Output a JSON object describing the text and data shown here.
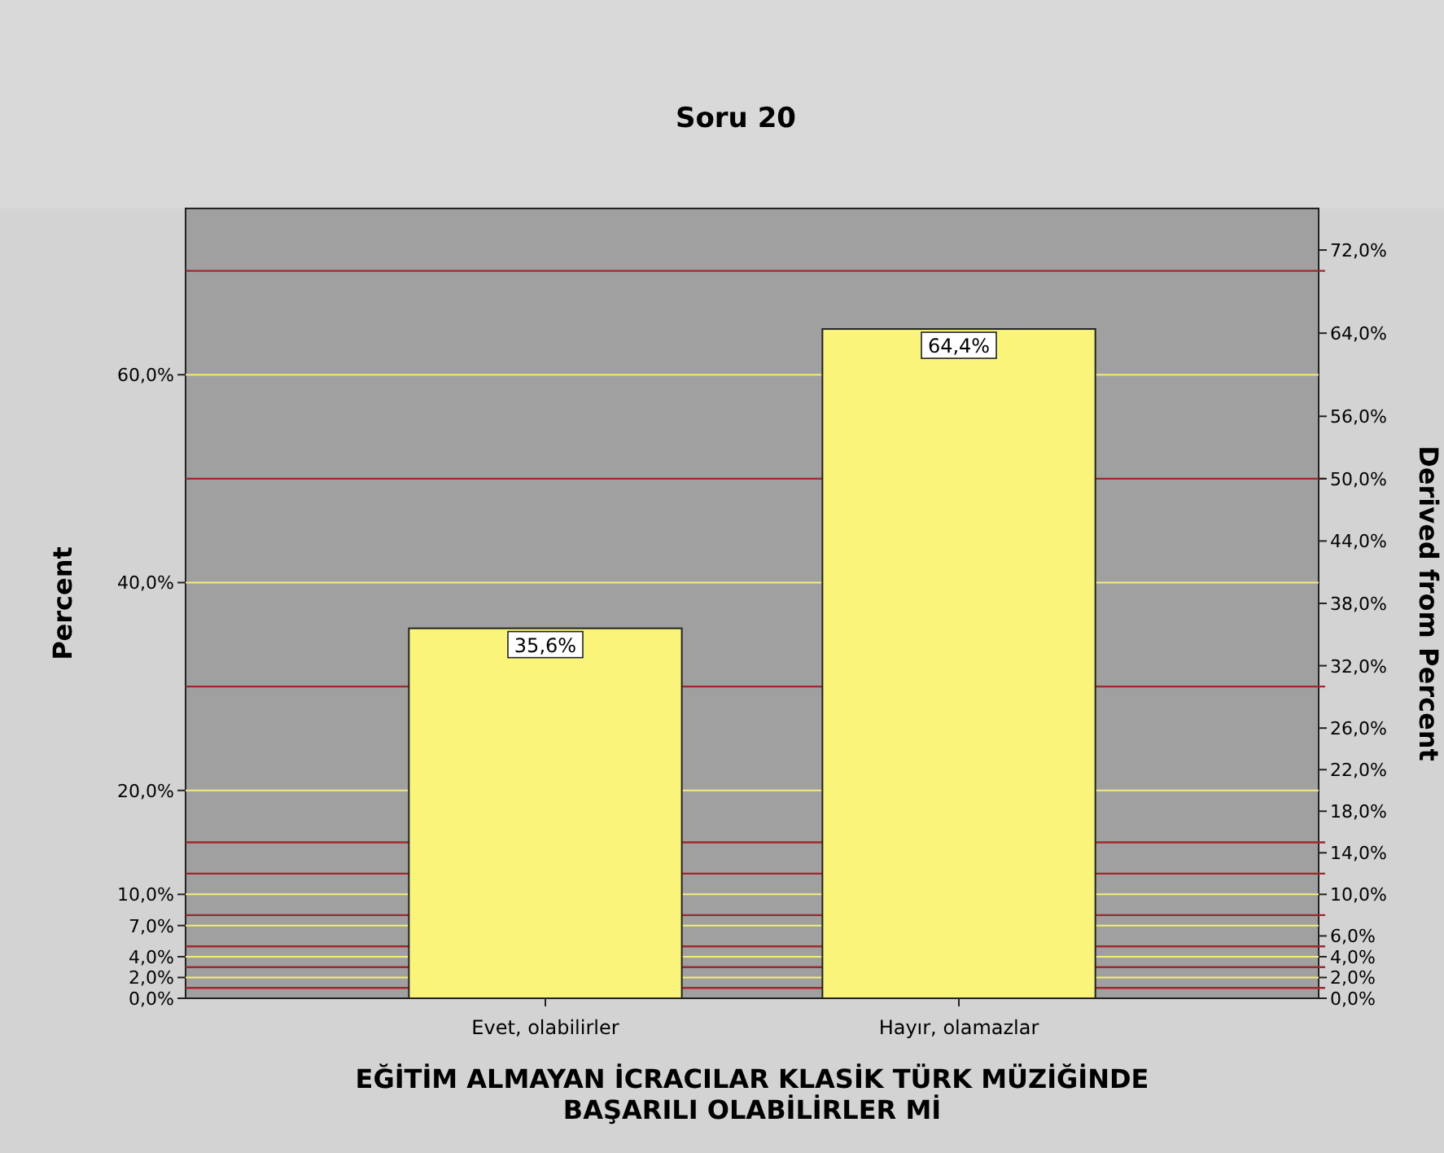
{
  "chart_data": {
    "type": "bar",
    "title": "Soru 20",
    "categories": [
      "Evet, olabilirler",
      "Hayır, olamazlar"
    ],
    "values": [
      35.6,
      64.4
    ],
    "color": "#faf57a",
    "value_labels": [
      "35,6%",
      "64,4%"
    ],
    "xlabel": "EĞİTİM ALMAYAN İCRACILAR KLASİK TÜRK MÜZİĞİNDE\nBAŞARILI OLABİLİRLER Mİ",
    "ylabel": "Percent",
    "y2label": "Derived from Percent",
    "ylim": [
      0,
      76
    ],
    "yticks": [
      {
        "value": 0,
        "label": "0,0%"
      },
      {
        "value": 2,
        "label": "2,0%"
      },
      {
        "value": 4,
        "label": "4,0%"
      },
      {
        "value": 7,
        "label": "7,0%"
      },
      {
        "value": 10,
        "label": "10,0%"
      },
      {
        "value": 20,
        "label": "20,0%"
      },
      {
        "value": 40,
        "label": "40,0%"
      },
      {
        "value": 60,
        "label": "60,0%"
      }
    ],
    "y2lim": [
      0,
      76
    ],
    "y2ticks": [
      {
        "value": 0,
        "label": "0,0%"
      },
      {
        "value": 2,
        "label": "2,0%"
      },
      {
        "value": 4,
        "label": "4,0%"
      },
      {
        "value": 6,
        "label": "6,0%"
      },
      {
        "value": 10,
        "label": "10,0%"
      },
      {
        "value": 14,
        "label": "14,0%"
      },
      {
        "value": 18,
        "label": "18,0%"
      },
      {
        "value": 22,
        "label": "22,0%"
      },
      {
        "value": 26,
        "label": "26,0%"
      },
      {
        "value": 32,
        "label": "32,0%"
      },
      {
        "value": 38,
        "label": "38,0%"
      },
      {
        "value": 44,
        "label": "44,0%"
      },
      {
        "value": 50,
        "label": "50,0%"
      },
      {
        "value": 56,
        "label": "56,0%"
      },
      {
        "value": 64,
        "label": "64,0%"
      },
      {
        "value": 72,
        "label": "72,0%"
      }
    ],
    "grid": "y",
    "ref_lines": [
      {
        "axis": "y2",
        "value": 70,
        "color": "#a0282d"
      },
      {
        "axis": "y2",
        "value": 50,
        "color": "#a0282d"
      },
      {
        "axis": "y2",
        "value": 30,
        "color": "#a0282d"
      },
      {
        "axis": "y2",
        "value": 15,
        "color": "#a0282d"
      },
      {
        "axis": "y2",
        "value": 12,
        "color": "#a0282d"
      },
      {
        "axis": "y2",
        "value": 8,
        "color": "#a0282d"
      },
      {
        "axis": "y2",
        "value": 5,
        "color": "#a0282d"
      },
      {
        "axis": "y2",
        "value": 3,
        "color": "#a0282d"
      },
      {
        "axis": "y2",
        "value": 1,
        "color": "#a0282d"
      }
    ]
  }
}
